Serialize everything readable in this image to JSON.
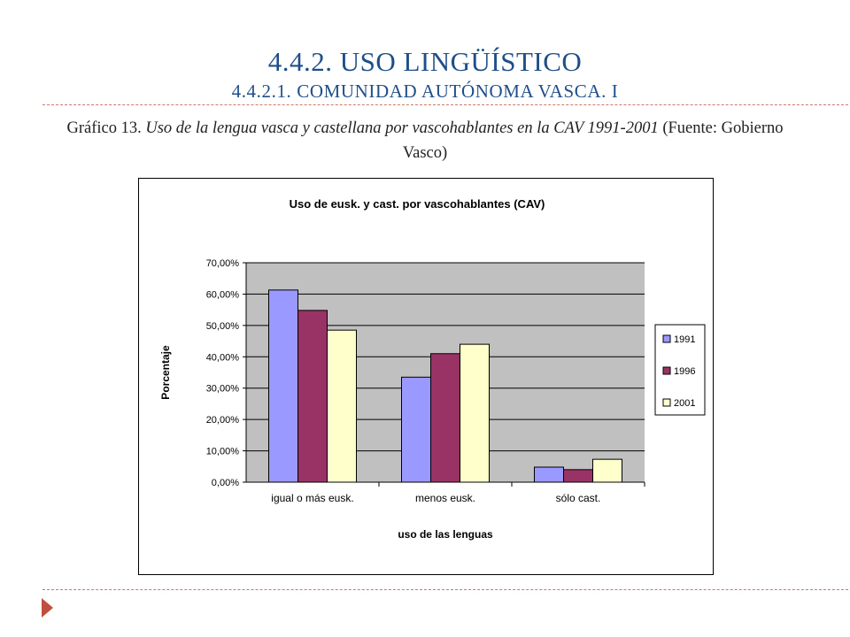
{
  "slide": {
    "title": "4.4.2. USO LINGÜÍSTICO",
    "subtitle": "4.4.2.1. COMUNIDAD AUTÓNOMA VASCA. I"
  },
  "caption": {
    "label": "Gráfico 13.",
    "italic_text": "Uso de la lengua vasca y castellana por vascohablantes en la CAV 1991-2001",
    "source": "(Fuente: Gobierno Vasco)"
  },
  "colors": {
    "title": "#1f4f8a",
    "plot_bg": "#c0c0c0",
    "accent": "#c0503e"
  },
  "chart_data": {
    "type": "bar",
    "title": "Uso de eusk. y cast. por vascohablantes (CAV)",
    "xlabel": "uso de las lenguas",
    "ylabel": "Porcentaje",
    "categories": [
      "igual o más eusk.",
      "menos eusk.",
      "sólo cast."
    ],
    "series": [
      {
        "name": "1991",
        "values": [
          61.3,
          33.5,
          4.8
        ],
        "color": "#9999ff"
      },
      {
        "name": "1996",
        "values": [
          54.8,
          41.0,
          4.0
        ],
        "color": "#993366"
      },
      {
        "name": "2001",
        "values": [
          48.5,
          44.0,
          7.3
        ],
        "color": "#ffffcc"
      }
    ],
    "ylim": [
      0,
      70
    ],
    "yticks": [
      0,
      10,
      20,
      30,
      40,
      50,
      60,
      70
    ],
    "ytick_labels": [
      "0,00%",
      "10,00%",
      "20,00%",
      "30,00%",
      "40,00%",
      "50,00%",
      "60,00%",
      "70,00%"
    ],
    "grid": true,
    "legend_position": "right"
  }
}
